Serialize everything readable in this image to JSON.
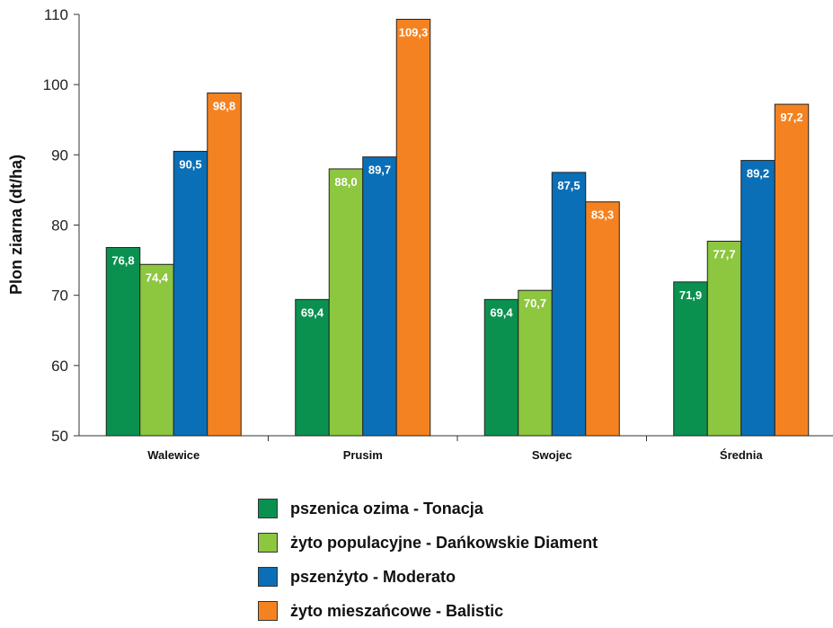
{
  "chart_data": {
    "type": "bar",
    "ylabel": "Plon ziarna (dt/ha)",
    "xlabel": "",
    "ylim": [
      50,
      110
    ],
    "yticks": [
      50,
      60,
      70,
      80,
      90,
      100,
      110
    ],
    "categories": [
      "Walewice",
      "Prusim",
      "Swojec",
      "Średnia"
    ],
    "series": [
      {
        "name": "pszenica ozima - Tonacja",
        "color": "#0a9150",
        "values": [
          76.8,
          69.4,
          69.4,
          71.9
        ],
        "labels": [
          "76,8",
          "69,4",
          "69,4",
          "71,9"
        ]
      },
      {
        "name": "żyto populacyjne - Dańkowskie Diament",
        "color": "#8dc63f",
        "values": [
          74.4,
          88.0,
          70.7,
          77.7
        ],
        "labels": [
          "74,4",
          "88,0",
          "70,7",
          "77,7"
        ]
      },
      {
        "name": "pszenżyto - Moderato",
        "color": "#0a6fb7",
        "values": [
          90.5,
          89.7,
          87.5,
          89.2
        ],
        "labels": [
          "90,5",
          "89,7",
          "87,5",
          "89,2"
        ]
      },
      {
        "name": "żyto mieszańcowe - Balistic",
        "color": "#f58220",
        "values": [
          98.8,
          109.3,
          83.3,
          97.2
        ],
        "labels": [
          "98,8",
          "109,3",
          "83,3",
          "97,2"
        ]
      }
    ],
    "grid": false,
    "legend_position": "bottom"
  }
}
